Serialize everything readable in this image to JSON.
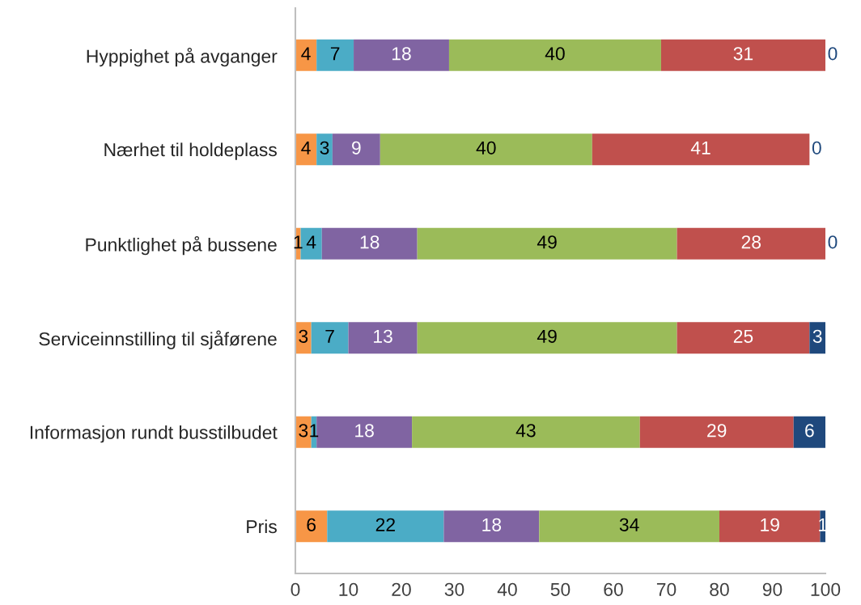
{
  "chart_data": {
    "type": "bar",
    "orientation": "horizontal",
    "stacked": true,
    "data_labels": true,
    "grid": false,
    "legend": false,
    "categories": [
      "Hyppighet på avganger",
      "Nærhet til holdeplass",
      "Punktlighet på bussene",
      "Serviceinnstilling til sjåførene",
      "Informasjon rundt busstilbudet",
      "Pris"
    ],
    "series": [
      {
        "color": "#f79646",
        "values": [
          4,
          4,
          1,
          3,
          3,
          6
        ]
      },
      {
        "color": "#4bacc6",
        "values": [
          7,
          3,
          4,
          7,
          1,
          22
        ]
      },
      {
        "color": "#8064a2",
        "values": [
          18,
          9,
          18,
          13,
          18,
          18
        ]
      },
      {
        "color": "#9bbb59",
        "values": [
          40,
          40,
          49,
          49,
          43,
          34
        ]
      },
      {
        "color": "#c0504d",
        "values": [
          31,
          41,
          28,
          25,
          29,
          19
        ]
      },
      {
        "color": "#1f497d",
        "values": [
          0,
          0,
          0,
          3,
          6,
          1
        ]
      }
    ],
    "xlim": [
      0,
      100
    ],
    "xticks": [
      0,
      10,
      20,
      30,
      40,
      50,
      60,
      70,
      80,
      90,
      100
    ]
  }
}
